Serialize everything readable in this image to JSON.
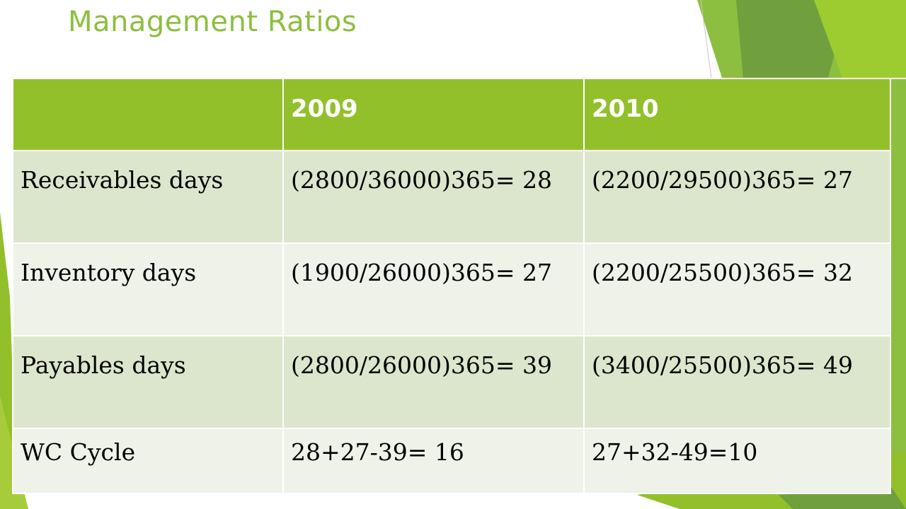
{
  "slide": {
    "title": "Management Ratios"
  },
  "table": {
    "headers": [
      "",
      "2009",
      "2010"
    ],
    "rows": [
      {
        "label": "Receivables days",
        "y2009": "(2800/36000)365= 28",
        "y2010": "(2200/29500)365= 27"
      },
      {
        "label": "Inventory days",
        "y2009": "(1900/26000)365= 27",
        "y2010": "(2200/25500)365= 32"
      },
      {
        "label": "Payables days",
        "y2009": "(2800/26000)365= 39",
        "y2010": "(3400/25500)365= 49"
      },
      {
        "label": "WC Cycle",
        "y2009": "28+27-39= 16",
        "y2010": "27+32-49=10"
      }
    ]
  },
  "colors": {
    "accent": "#92c02b",
    "title": "#8cbf3f",
    "row_dark": "#dce6cd",
    "row_light": "#eef2e8"
  }
}
